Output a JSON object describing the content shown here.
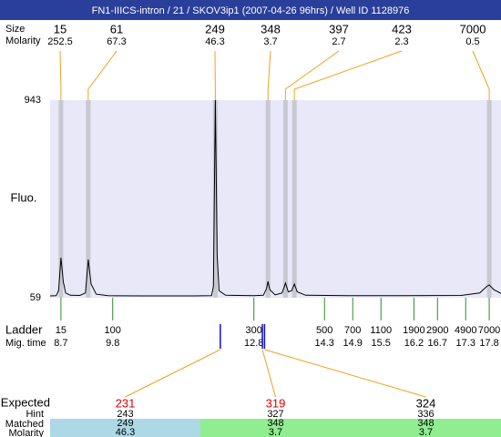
{
  "header": {
    "title": "FN1-IIICS-intron / 21 / SKOV3ip1  (2007-04-26 96hrs) / Well ID 1128976"
  },
  "chart_data": {
    "type": "line",
    "ylabel": "Fluo.",
    "ylim": [
      59,
      943
    ],
    "yticks": [
      59,
      943
    ],
    "xlim": [
      8.47,
      18.05
    ],
    "color": "#000000",
    "background": "#e8e8f8",
    "x": [
      8.47,
      8.6,
      8.65,
      8.7,
      8.75,
      8.8,
      8.9,
      9.1,
      9.22,
      9.28,
      9.34,
      9.45,
      9.7,
      10.5,
      11.5,
      11.9,
      11.94,
      11.98,
      12.02,
      12.06,
      12.2,
      12.8,
      13.0,
      13.07,
      13.1,
      13.14,
      13.25,
      13.4,
      13.47,
      13.53,
      13.6,
      13.66,
      13.72,
      13.9,
      15.0,
      16.0,
      17.2,
      17.6,
      17.75,
      17.8,
      17.9,
      18.05
    ],
    "values": [
      67,
      68,
      90,
      238,
      130,
      80,
      70,
      69,
      80,
      230,
      120,
      75,
      68,
      67,
      67,
      68,
      110,
      943,
      250,
      90,
      70,
      68,
      70,
      100,
      132,
      95,
      72,
      80,
      124,
      85,
      90,
      120,
      85,
      70,
      68,
      68,
      69,
      80,
      110,
      116,
      95,
      78
    ]
  },
  "peaks": {
    "size_label": "Size",
    "molarity_label": "Molarity",
    "band_color": "#c8c8d2",
    "line_color": "#f0a020",
    "items": [
      {
        "size": 15,
        "molarity": 252.5,
        "mig_time": 8.7
      },
      {
        "size": 61,
        "molarity": 67.3,
        "mig_time": 9.28
      },
      {
        "size": 249,
        "molarity": 46.3,
        "mig_time": 11.98
      },
      {
        "size": 348,
        "molarity": 3.7,
        "mig_time": 13.1
      },
      {
        "size": 397,
        "molarity": 2.7,
        "mig_time": 13.47
      },
      {
        "size": 423,
        "molarity": 2.3,
        "mig_time": 13.66
      },
      {
        "size": 7000,
        "molarity": 0.5,
        "mig_time": 17.8
      }
    ]
  },
  "ladder": {
    "label": "Ladder",
    "mig_label": "Mig. time",
    "color": "#2e8b2e",
    "items": [
      {
        "size": 15,
        "mig_time": 8.7
      },
      {
        "size": 100,
        "mig_time": 9.8
      },
      {
        "size": 300,
        "mig_time": 12.8
      },
      {
        "size": 500,
        "mig_time": 14.3
      },
      {
        "size": 700,
        "mig_time": 14.9
      },
      {
        "size": 1100,
        "mig_time": 15.5
      },
      {
        "size": 1900,
        "mig_time": 16.2
      },
      {
        "size": 2900,
        "mig_time": 16.7
      },
      {
        "size": 4900,
        "mig_time": 17.3
      },
      {
        "size": 7000,
        "mig_time": 17.8
      }
    ]
  },
  "expected": {
    "expected_label": "Expected",
    "hint_label": "Hint",
    "matched_label": "Matched",
    "molarity_label": "Molarity",
    "mark_color": "#1010c0",
    "line_color": "#f0a020",
    "items": [
      {
        "expected": 231,
        "hint": 243,
        "matched": 249,
        "molarity": 46.3,
        "expected_color": "#e00000",
        "color": "#add8e6"
      },
      {
        "expected": 319,
        "hint": 327,
        "matched": 348,
        "molarity": 3.7,
        "expected_color": "#e00000",
        "color": "#90ee90"
      },
      {
        "expected": 324,
        "hint": 336,
        "matched": 348,
        "molarity": 3.7,
        "expected_color": "#000000",
        "color": "#90ee90"
      }
    ]
  }
}
